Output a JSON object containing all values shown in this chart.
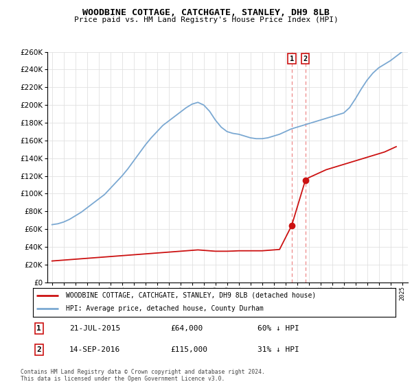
{
  "title": "WOODBINE COTTAGE, CATCHGATE, STANLEY, DH9 8LB",
  "subtitle": "Price paid vs. HM Land Registry's House Price Index (HPI)",
  "legend_line1": "WOODBINE COTTAGE, CATCHGATE, STANLEY, DH9 8LB (detached house)",
  "legend_line2": "HPI: Average price, detached house, County Durham",
  "sale1_date": "21-JUL-2015",
  "sale1_price": "£64,000",
  "sale1_hpi": "60% ↓ HPI",
  "sale1_year": 2015.54,
  "sale1_value": 64000,
  "sale2_date": "14-SEP-2016",
  "sale2_price": "£115,000",
  "sale2_hpi": "31% ↓ HPI",
  "sale2_year": 2016.71,
  "sale2_value": 115000,
  "footer": "Contains HM Land Registry data © Crown copyright and database right 2024.\nThis data is licensed under the Open Government Licence v3.0.",
  "hpi_color": "#7aa8d2",
  "property_color": "#cc1111",
  "vline_color": "#ee8888",
  "grid_color": "#e0e0e0",
  "ylim": [
    0,
    260000
  ],
  "xlim_start": 1994.6,
  "xlim_end": 2025.5,
  "hpi_years": [
    1995,
    1995.5,
    1996,
    1996.5,
    1997,
    1997.5,
    1998,
    1998.5,
    1999,
    1999.5,
    2000,
    2000.5,
    2001,
    2001.5,
    2002,
    2002.5,
    2003,
    2003.5,
    2004,
    2004.5,
    2005,
    2005.5,
    2006,
    2006.5,
    2007,
    2007.5,
    2008,
    2008.5,
    2009,
    2009.5,
    2010,
    2010.5,
    2011,
    2011.5,
    2012,
    2012.5,
    2013,
    2013.5,
    2014,
    2014.5,
    2015,
    2015.5,
    2016,
    2016.5,
    2017,
    2017.5,
    2018,
    2018.5,
    2019,
    2019.5,
    2020,
    2020.5,
    2021,
    2021.5,
    2022,
    2022.5,
    2023,
    2023.5,
    2024,
    2024.5,
    2025
  ],
  "hpi_values": [
    65000,
    66000,
    68000,
    71000,
    75000,
    79000,
    84000,
    89000,
    94000,
    99000,
    106000,
    113000,
    120000,
    128000,
    137000,
    146000,
    155000,
    163000,
    170000,
    177000,
    182000,
    187000,
    192000,
    197000,
    201000,
    203000,
    200000,
    193000,
    183000,
    175000,
    170000,
    168000,
    167000,
    165000,
    163000,
    162000,
    162000,
    163000,
    165000,
    167000,
    170000,
    173000,
    175000,
    177000,
    179000,
    181000,
    183000,
    185000,
    187000,
    189000,
    191000,
    197000,
    207000,
    218000,
    228000,
    236000,
    242000,
    246000,
    250000,
    255000,
    260000
  ],
  "property_years": [
    1995,
    1995.5,
    1996,
    1996.5,
    1997,
    1997.5,
    1998,
    1998.5,
    1999,
    1999.5,
    2000,
    2000.5,
    2001,
    2001.5,
    2002,
    2002.5,
    2003,
    2003.5,
    2004,
    2004.5,
    2005,
    2005.5,
    2006,
    2006.5,
    2007,
    2007.5,
    2008,
    2008.5,
    2009,
    2009.5,
    2010,
    2010.5,
    2011,
    2011.5,
    2012,
    2012.5,
    2013,
    2013.5,
    2014,
    2014.5,
    2015.54,
    2016.71,
    2017,
    2017.5,
    2018,
    2018.5,
    2019,
    2019.5,
    2020,
    2020.5,
    2021,
    2021.5,
    2022,
    2022.5,
    2023,
    2023.5,
    2024,
    2024.5
  ],
  "property_values": [
    24000,
    24500,
    25000,
    25500,
    26000,
    26500,
    27000,
    27500,
    28000,
    28500,
    29000,
    29500,
    30000,
    30500,
    31000,
    31500,
    32000,
    32500,
    33000,
    33500,
    34000,
    34500,
    35000,
    35500,
    36000,
    36500,
    36000,
    35500,
    35000,
    35000,
    35000,
    35200,
    35500,
    35500,
    35500,
    35500,
    35500,
    36000,
    36500,
    37000,
    64000,
    115000,
    118000,
    121000,
    124000,
    127000,
    129000,
    131000,
    133000,
    135000,
    137000,
    139000,
    141000,
    143000,
    145000,
    147000,
    150000,
    153000
  ]
}
